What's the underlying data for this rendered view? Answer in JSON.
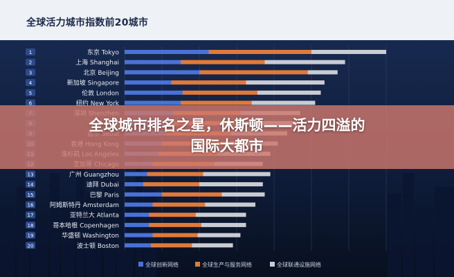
{
  "chart_data": {
    "type": "bar",
    "title": "全球活力城市指数前20城市",
    "ranks": [
      "1",
      "2",
      "3",
      "4",
      "5",
      "6",
      "7",
      "8",
      "9",
      "10",
      "11",
      "12",
      "13",
      "14",
      "15",
      "16",
      "17",
      "18",
      "19",
      "20"
    ],
    "categories": [
      "东京 Tokyo",
      "上海 Shanghai",
      "北京 Beijing",
      "新加坡 Singapore",
      "伦敦 London",
      "纽约 New York",
      "深圳 Shenzhen",
      "巴黎 Paris",
      "首尔 Seoul",
      "香港 Hong Kong",
      "洛杉矶 Los Angeles",
      "芝加哥 Chicago",
      "广州 Guangzhou",
      "迪拜 Dubai",
      "巴黎 Paris",
      "阿姆斯特丹 Amsterdam",
      "亚特兰大 Atlanta",
      "哥本哈根 Copenhagen",
      "华盛顿 Washington",
      "波士顿 Boston"
    ],
    "stacked": true,
    "series": [
      {
        "name": "全球创新网络",
        "color": "#4a72d6",
        "values": [
          45,
          30,
          40,
          25,
          31,
          30,
          26,
          24,
          22,
          20,
          18,
          15,
          12,
          10,
          20,
          15,
          13,
          13,
          15,
          14
        ]
      },
      {
        "name": "全球生产与服务网络",
        "color": "#e07a3a",
        "values": [
          55,
          45,
          58,
          40,
          40,
          38,
          36,
          36,
          35,
          34,
          32,
          33,
          30,
          30,
          32,
          28,
          25,
          28,
          24,
          22
        ]
      },
      {
        "name": "全球联通设施网络",
        "color": "#c9ccd3",
        "values": [
          40,
          43,
          16,
          42,
          34,
          34,
          32,
          32,
          30,
          28,
          28,
          26,
          36,
          34,
          23,
          27,
          27,
          24,
          23,
          22
        ]
      }
    ],
    "xlim": [
      0,
      145
    ],
    "grid": true,
    "legend": "bottom"
  },
  "overlay": {
    "banner_line1": "全球城市排名之星，休斯顿——活力四溢的",
    "banner_line2": "国际大都市"
  }
}
